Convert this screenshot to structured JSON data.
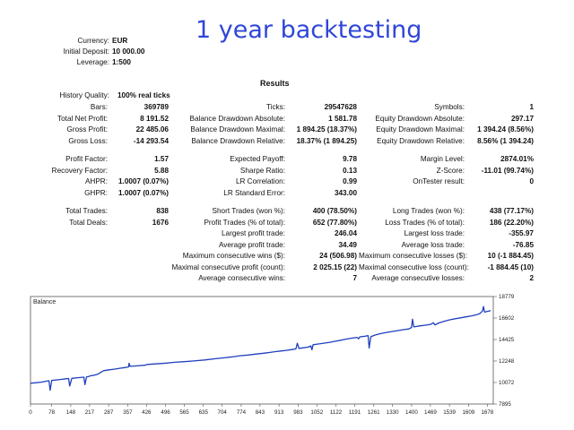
{
  "title": "1 year backtesting",
  "account": [
    {
      "label": "Currency:",
      "value": "EUR"
    },
    {
      "label": "Initial Deposit:",
      "value": "10 000.00"
    },
    {
      "label": "Leverage:",
      "value": "1:500"
    }
  ],
  "results_header": "Results",
  "history_quality": {
    "label": "History Quality:",
    "value": "100% real ticks"
  },
  "rows_top": [
    [
      "Bars:",
      "369789",
      "Ticks:",
      "29547628",
      "Symbols:",
      "1"
    ],
    [
      "Total Net Profit:",
      "8 191.52",
      "Balance Drawdown Absolute:",
      "1 581.78",
      "Equity Drawdown Absolute:",
      "297.17"
    ],
    [
      "Gross Profit:",
      "22 485.06",
      "Balance Drawdown Maximal:",
      "1 894.25 (18.37%)",
      "Equity Drawdown Maximal:",
      "1 394.24 (8.56%)"
    ],
    [
      "Gross Loss:",
      "-14 293.54",
      "Balance Drawdown Relative:",
      "18.37% (1 894.25)",
      "Equity Drawdown Relative:",
      "8.56% (1 394.24)"
    ]
  ],
  "rows_mid": [
    [
      "Profit Factor:",
      "1.57",
      "Expected Payoff:",
      "9.78",
      "Margin Level:",
      "2874.01%"
    ],
    [
      "Recovery Factor:",
      "5.88",
      "Sharpe Ratio:",
      "0.13",
      "Z-Score:",
      "-11.01 (99.74%)"
    ],
    [
      "AHPR:",
      "1.0007 (0.07%)",
      "LR Correlation:",
      "0.99",
      "OnTester result:",
      "0"
    ],
    [
      "GHPR:",
      "1.0007 (0.07%)",
      "LR Standard Error:",
      "343.00",
      "",
      ""
    ]
  ],
  "rows_bot": [
    [
      "Total Trades:",
      "838",
      "Short Trades (won %):",
      "400 (78.50%)",
      "Long Trades (won %):",
      "438 (77.17%)"
    ],
    [
      "Total Deals:",
      "1676",
      "Profit Trades (% of total):",
      "652 (77.80%)",
      "Loss Trades (% of total):",
      "186 (22.20%)"
    ],
    [
      "",
      "",
      "Largest profit trade:",
      "246.04",
      "Largest loss trade:",
      "-355.97"
    ],
    [
      "",
      "",
      "Average profit trade:",
      "34.49",
      "Average loss trade:",
      "-76.85"
    ],
    [
      "",
      "",
      "Maximum consecutive wins ($):",
      "24 (506.98)",
      "Maximum consecutive losses ($):",
      "10 (-1 884.45)"
    ],
    [
      "",
      "",
      "Maximal consecutive profit (count):",
      "2 025.15 (22)",
      "Maximal consecutive loss (count):",
      "-1 884.45 (10)"
    ],
    [
      "",
      "",
      "Average consecutive wins:",
      "7",
      "Average consecutive losses:",
      "2"
    ]
  ],
  "colors": {
    "title": "#2f46d8",
    "line": "#1f3fbf"
  },
  "chart_data": {
    "type": "line",
    "title": "Balance",
    "xlabel": "",
    "ylabel": "",
    "x_ticks": [
      "0",
      "78",
      "148",
      "217",
      "287",
      "357",
      "426",
      "496",
      "565",
      "635",
      "704",
      "774",
      "843",
      "913",
      "983",
      "1052",
      "1122",
      "1191",
      "1261",
      "1330",
      "1400",
      "1469",
      "1539",
      "1609",
      "1678"
    ],
    "y_ticks": [
      "18779",
      "16602",
      "14425",
      "12248",
      "10072",
      "7895"
    ],
    "xlim": [
      0,
      1700
    ],
    "ylim": [
      7895,
      18779
    ],
    "grid": false,
    "series": [
      {
        "values": [
          [
            0,
            10000
          ],
          [
            40,
            10110
          ],
          [
            60,
            10220
          ],
          [
            68,
            10250
          ],
          [
            72,
            9280
          ],
          [
            78,
            10280
          ],
          [
            110,
            10380
          ],
          [
            130,
            10450
          ],
          [
            140,
            10480
          ],
          [
            144,
            9720
          ],
          [
            152,
            10500
          ],
          [
            175,
            10560
          ],
          [
            196,
            10620
          ],
          [
            200,
            9850
          ],
          [
            206,
            10640
          ],
          [
            215,
            10700
          ],
          [
            222,
            10760
          ],
          [
            235,
            10820
          ],
          [
            245,
            10900
          ],
          [
            252,
            11000
          ],
          [
            258,
            11100
          ],
          [
            264,
            11200
          ],
          [
            270,
            11280
          ],
          [
            290,
            11360
          ],
          [
            310,
            11430
          ],
          [
            330,
            11520
          ],
          [
            350,
            11600
          ],
          [
            360,
            11660
          ],
          [
            362,
            12020
          ],
          [
            366,
            11700
          ],
          [
            390,
            11760
          ],
          [
            420,
            11820
          ],
          [
            430,
            11900
          ],
          [
            460,
            11960
          ],
          [
            500,
            12040
          ],
          [
            530,
            12120
          ],
          [
            560,
            12180
          ],
          [
            600,
            12260
          ],
          [
            640,
            12360
          ],
          [
            680,
            12480
          ],
          [
            720,
            12600
          ],
          [
            750,
            12700
          ],
          [
            770,
            12780
          ],
          [
            800,
            12860
          ],
          [
            830,
            12960
          ],
          [
            860,
            13050
          ],
          [
            880,
            13120
          ],
          [
            900,
            13200
          ],
          [
            920,
            13260
          ],
          [
            940,
            13330
          ],
          [
            960,
            13410
          ],
          [
            975,
            13470
          ],
          [
            980,
            14050
          ],
          [
            986,
            13520
          ],
          [
            1000,
            13580
          ],
          [
            1020,
            13650
          ],
          [
            1030,
            13780
          ],
          [
            1034,
            13380
          ],
          [
            1038,
            13900
          ],
          [
            1060,
            13980
          ],
          [
            1080,
            14060
          ],
          [
            1100,
            14140
          ],
          [
            1120,
            14250
          ],
          [
            1140,
            14350
          ],
          [
            1160,
            14470
          ],
          [
            1180,
            14560
          ],
          [
            1200,
            14640
          ],
          [
            1205,
            14500
          ],
          [
            1210,
            14700
          ],
          [
            1230,
            14760
          ],
          [
            1240,
            14820
          ],
          [
            1244,
            13560
          ],
          [
            1250,
            14700
          ],
          [
            1262,
            14840
          ],
          [
            1275,
            14950
          ],
          [
            1290,
            15050
          ],
          [
            1310,
            15150
          ],
          [
            1330,
            15240
          ],
          [
            1350,
            15330
          ],
          [
            1370,
            15420
          ],
          [
            1390,
            15500
          ],
          [
            1400,
            15650
          ],
          [
            1403,
            16480
          ],
          [
            1408,
            15700
          ],
          [
            1430,
            15800
          ],
          [
            1450,
            15880
          ],
          [
            1470,
            15960
          ],
          [
            1480,
            16120
          ],
          [
            1486,
            15900
          ],
          [
            1500,
            16100
          ],
          [
            1520,
            16280
          ],
          [
            1540,
            16420
          ],
          [
            1560,
            16530
          ],
          [
            1580,
            16620
          ],
          [
            1600,
            16720
          ],
          [
            1620,
            16820
          ],
          [
            1640,
            16950
          ],
          [
            1650,
            17050
          ],
          [
            1660,
            17300
          ],
          [
            1664,
            17760
          ],
          [
            1668,
            17200
          ],
          [
            1690,
            17350
          ]
        ]
      }
    ]
  }
}
